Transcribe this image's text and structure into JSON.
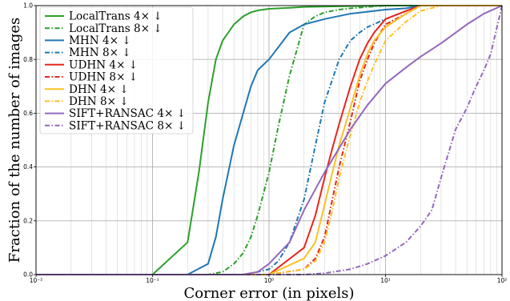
{
  "chart_data": {
    "type": "line",
    "title": "",
    "xlabel": "Corner error (in pixels)",
    "ylabel": "Fraction of the number of images",
    "x_scale": "log",
    "xlim": [
      0.01,
      100
    ],
    "ylim": [
      0,
      1
    ],
    "x_ticks": [
      {
        "value": 0.01,
        "label": "10⁻²"
      },
      {
        "value": 0.1,
        "label": "10⁻¹"
      },
      {
        "value": 1,
        "label": "10⁰"
      },
      {
        "value": 10,
        "label": "10¹"
      },
      {
        "value": 100,
        "label": "10²"
      }
    ],
    "y_ticks": [
      {
        "value": 0,
        "label": "0.0"
      },
      {
        "value": 0.2,
        "label": "0.2"
      },
      {
        "value": 0.4,
        "label": "0.4"
      },
      {
        "value": 0.6,
        "label": "0.6"
      },
      {
        "value": 0.8,
        "label": "0.8"
      },
      {
        "value": 1,
        "label": "1.0"
      }
    ],
    "grid": true,
    "legend_position": "top-left",
    "series": [
      {
        "name": "LocalTrans  4× ↓",
        "color": "#2ca02c",
        "dash": "solid",
        "x": [
          0.01,
          0.1,
          0.2,
          0.25,
          0.3,
          0.35,
          0.4,
          0.5,
          0.6,
          0.7,
          0.8,
          1,
          1.5,
          2,
          5,
          10,
          20,
          50,
          100
        ],
        "y": [
          0,
          0,
          0.12,
          0.38,
          0.64,
          0.8,
          0.87,
          0.93,
          0.96,
          0.975,
          0.982,
          0.988,
          0.992,
          0.995,
          0.998,
          1,
          1,
          1,
          1
        ]
      },
      {
        "name": "LocalTrans  8× ↓",
        "color": "#2ca02c",
        "dash": "dashdot",
        "x": [
          0.01,
          0.3,
          0.4,
          0.5,
          0.6,
          0.7,
          0.8,
          1,
          1.2,
          1.5,
          2,
          2.5,
          3,
          4,
          5,
          7,
          10,
          20,
          100
        ],
        "y": [
          0,
          0,
          0.01,
          0.04,
          0.08,
          0.14,
          0.22,
          0.38,
          0.55,
          0.74,
          0.93,
          0.96,
          0.975,
          0.985,
          0.99,
          0.995,
          1,
          1,
          1
        ]
      },
      {
        "name": "MHN  4× ↓",
        "color": "#1f77b4",
        "dash": "solid",
        "x": [
          0.01,
          0.1,
          0.2,
          0.3,
          0.35,
          0.4,
          0.5,
          0.6,
          0.7,
          0.8,
          1,
          1.5,
          2,
          3,
          5,
          10,
          15,
          20,
          100
        ],
        "y": [
          0,
          0,
          0,
          0.04,
          0.14,
          0.28,
          0.48,
          0.6,
          0.7,
          0.76,
          0.8,
          0.9,
          0.93,
          0.95,
          0.97,
          0.985,
          0.99,
          1,
          1
        ]
      },
      {
        "name": "MHN  8× ↓",
        "color": "#1f77b4",
        "dash": "dashdot",
        "x": [
          0.01,
          0.6,
          0.8,
          1,
          1.2,
          1.5,
          2,
          2.5,
          3,
          4,
          5,
          6,
          7,
          10,
          15,
          20,
          30,
          100
        ],
        "y": [
          0,
          0,
          0.01,
          0.02,
          0.05,
          0.12,
          0.28,
          0.48,
          0.64,
          0.8,
          0.87,
          0.9,
          0.92,
          0.95,
          0.98,
          1,
          1,
          1
        ]
      },
      {
        "name": "UDHN  4× ↓",
        "color": "#e8251c",
        "dash": "solid",
        "x": [
          0.01,
          1,
          2,
          2.5,
          3,
          3.5,
          4,
          5,
          6,
          7,
          8,
          10,
          15,
          20,
          100
        ],
        "y": [
          0,
          0,
          0.1,
          0.22,
          0.36,
          0.47,
          0.56,
          0.7,
          0.8,
          0.86,
          0.9,
          0.95,
          0.98,
          1,
          1
        ]
      },
      {
        "name": "UDHN  8× ↓",
        "color": "#e8251c",
        "dash": "dashdot",
        "x": [
          0.01,
          1,
          2,
          2.5,
          3,
          3.5,
          4,
          5,
          6,
          7,
          8,
          10,
          15,
          20,
          100
        ],
        "y": [
          0,
          0,
          0.02,
          0.06,
          0.14,
          0.28,
          0.4,
          0.57,
          0.72,
          0.8,
          0.86,
          0.93,
          0.97,
          1,
          1
        ]
      },
      {
        "name": "DHN  4× ↓",
        "color": "#ffbf1f",
        "dash": "solid",
        "x": [
          0.01,
          1,
          2,
          2.5,
          3,
          3.5,
          4,
          5,
          6,
          7,
          8,
          10,
          15,
          20,
          100
        ],
        "y": [
          0,
          0,
          0.06,
          0.12,
          0.26,
          0.38,
          0.48,
          0.62,
          0.74,
          0.82,
          0.87,
          0.92,
          0.97,
          1,
          1
        ]
      },
      {
        "name": "DHN  8× ↓",
        "color": "#ffbf1f",
        "dash": "dashdot",
        "x": [
          0.01,
          1,
          2,
          2.5,
          3,
          3.5,
          4,
          5,
          6,
          7,
          8,
          10,
          15,
          20,
          30,
          100
        ],
        "y": [
          0,
          0,
          0.02,
          0.05,
          0.12,
          0.24,
          0.36,
          0.52,
          0.64,
          0.72,
          0.78,
          0.87,
          0.94,
          0.98,
          1,
          1
        ]
      },
      {
        "name": "SIFT+RANSAC  4× ↓",
        "color": "#9467bd",
        "dash": "solid",
        "x": [
          0.01,
          0.6,
          0.8,
          1,
          1.5,
          2,
          3,
          5,
          7,
          10,
          15,
          20,
          30,
          50,
          70,
          100
        ],
        "y": [
          0,
          0,
          0.01,
          0.04,
          0.12,
          0.24,
          0.38,
          0.54,
          0.63,
          0.71,
          0.77,
          0.81,
          0.86,
          0.93,
          0.97,
          1
        ]
      },
      {
        "name": "SIFT+RANSAC  8× ↓",
        "color": "#9467bd",
        "dash": "dashdot",
        "x": [
          0.01,
          2,
          3,
          5,
          7,
          10,
          15,
          20,
          25,
          30,
          40,
          50,
          60,
          70,
          80,
          100
        ],
        "y": [
          0,
          0,
          0.005,
          0.02,
          0.04,
          0.07,
          0.12,
          0.18,
          0.24,
          0.36,
          0.54,
          0.62,
          0.7,
          0.76,
          0.82,
          1
        ]
      }
    ]
  }
}
